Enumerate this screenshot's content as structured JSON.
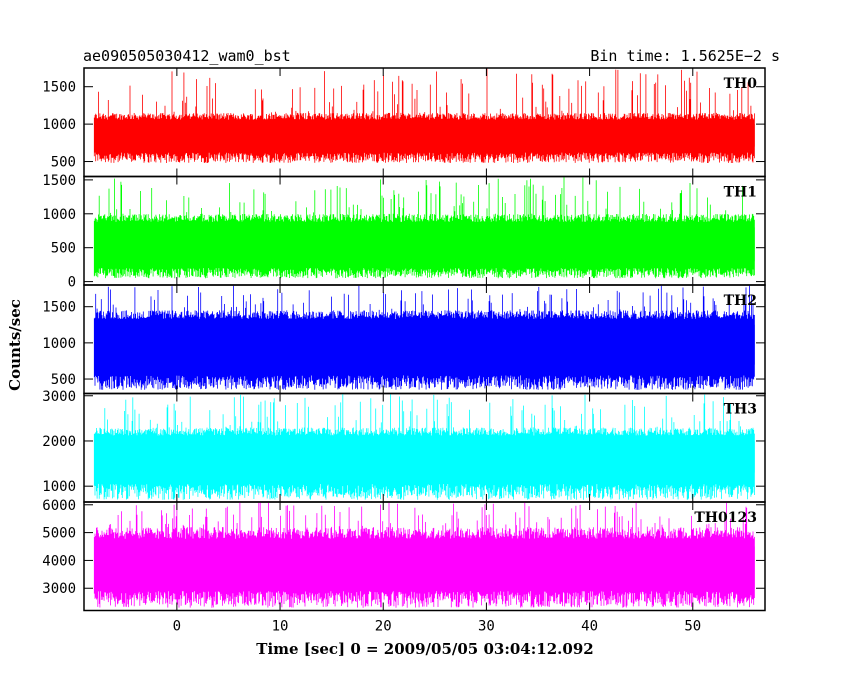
{
  "header": {
    "title": "ae090505030412_wam0_bst",
    "bin_time": "Bin time: 1.5625E−2 s"
  },
  "chart_data": {
    "type": "line",
    "ylabel": "Counts/sec",
    "xlabel": "Time [sec] 0 = 2009/05/05 03:04:12.092",
    "xlim": [
      -9,
      57
    ],
    "data_range": [
      -8,
      56
    ],
    "x_ticks": [
      0,
      10,
      20,
      30,
      40,
      50
    ],
    "panels": [
      {
        "name": "TH0",
        "color": "#ff0000",
        "ylim": [
          300,
          1750
        ],
        "yticks": [
          500,
          1000,
          1500
        ],
        "band": [
          700,
          1000
        ],
        "low": [
          480,
          620
        ],
        "high": [
          1150,
          1750
        ]
      },
      {
        "name": "TH1",
        "color": "#00ff00",
        "ylim": [
          -50,
          1550
        ],
        "yticks": [
          0,
          500,
          1000,
          1500
        ],
        "band": [
          300,
          800
        ],
        "low": [
          50,
          200
        ],
        "high": [
          1000,
          1550
        ]
      },
      {
        "name": "TH2",
        "color": "#0000ff",
        "ylim": [
          300,
          1800
        ],
        "yticks": [
          500,
          1000,
          1500
        ],
        "band": [
          700,
          1250
        ],
        "low": [
          350,
          550
        ],
        "high": [
          1450,
          1800
        ]
      },
      {
        "name": "TH3",
        "color": "#00ffff",
        "ylim": [
          650,
          3050
        ],
        "yticks": [
          1000,
          2000,
          3000
        ],
        "band": [
          1300,
          2000
        ],
        "low": [
          700,
          1050
        ],
        "high": [
          2300,
          3050
        ]
      },
      {
        "name": "TH0123",
        "color": "#ff00ff",
        "ylim": [
          2200,
          6100
        ],
        "yticks": [
          3000,
          4000,
          5000,
          6000
        ],
        "band": [
          3000,
          4500
        ],
        "low": [
          2300,
          2900
        ],
        "high": [
          5200,
          6100
        ]
      }
    ]
  }
}
